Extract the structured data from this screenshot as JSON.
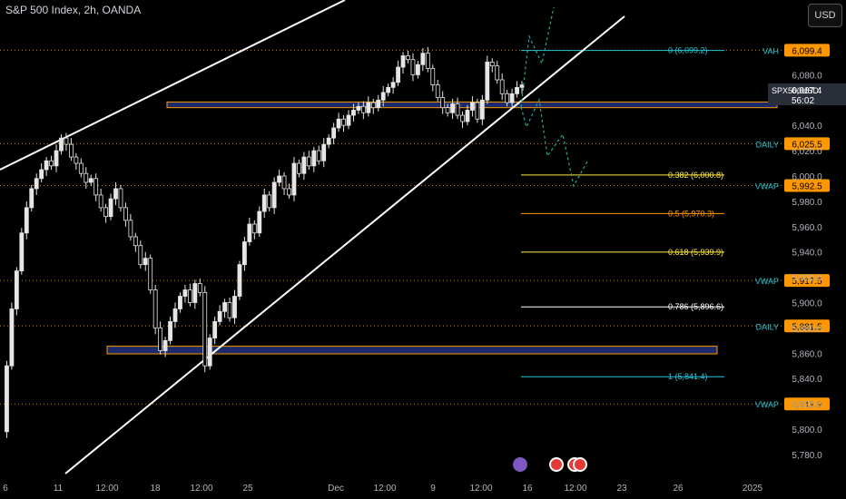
{
  "header": {
    "title": "S&P 500 Index, 2h, OANDA",
    "currency_button": "USD"
  },
  "price_badge": {
    "symbol": "SPX500USD",
    "price": "6,067.4",
    "countdown": "56:02"
  },
  "colors": {
    "background": "#000000",
    "candle": "#e6e6e6",
    "trendline": "#ffffff",
    "zone_fill": "#1b2a6b",
    "zone_border": "#ff9800",
    "level_line": "#ff9800",
    "fib_0": "#26c6da",
    "fib_0382": "#ffeb3b",
    "fib_05": "#ff9800",
    "fib_0618": "#ffeb3b",
    "fib_0786": "#ffffff",
    "fib_1": "#26c6da",
    "projection": "#26a69a",
    "axis_text": "#b2b5be"
  },
  "chart_data": {
    "type": "candlestick",
    "y_range": [
      5768,
      6118
    ],
    "y_ticks": [
      6080.0,
      6060.0,
      6040.0,
      6020.0,
      6000.0,
      5980.0,
      5960.0,
      5940.0,
      5920.0,
      5900.0,
      5880.0,
      5860.0,
      5840.0,
      5820.0,
      5800.0,
      5780.0
    ],
    "x_ticks": [
      "6",
      "11",
      "12:00",
      "18",
      "12:00",
      "25",
      "Dec",
      "12:00",
      "9",
      "12:00",
      "16",
      "12:00",
      "23",
      "26",
      "2025"
    ],
    "levels": [
      {
        "label": "VAH",
        "value": "6,099.4",
        "price": 6099.4
      },
      {
        "label": "DAILY",
        "value": "6,025.5",
        "price": 6025.5
      },
      {
        "label": "VWAP",
        "value": "5,992.5",
        "price": 5992.5
      },
      {
        "label": "VWAP",
        "value": "5,917.5",
        "price": 5917.5
      },
      {
        "label": "DAILY",
        "value": "5,881.5",
        "price": 5881.5
      },
      {
        "label": "VWAP",
        "value": "5,819.9",
        "price": 5819.9
      }
    ],
    "fibonacci": [
      {
        "label": "0 (6,099.2)",
        "price": 6099.2,
        "ckey": "fib_0"
      },
      {
        "label": "0.382 (6,000.8)",
        "price": 6000.8,
        "ckey": "fib_0382"
      },
      {
        "label": "0.5 (5,970.3)",
        "price": 5970.3,
        "ckey": "fib_05"
      },
      {
        "label": "0.618 (5,939.9)",
        "price": 5939.9,
        "ckey": "fib_0618"
      },
      {
        "label": "0.786 (5,896.6)",
        "price": 5896.6,
        "ckey": "fib_0786"
      },
      {
        "label": "1 (5,841.4)",
        "price": 5841.4,
        "ckey": "fib_1"
      }
    ],
    "zones": [
      {
        "name": "upper-zone",
        "high": 6058.5,
        "low": 6054.0
      },
      {
        "name": "lower-zone",
        "high": 5865.5,
        "low": 5859.5
      }
    ],
    "price_path": [
      5798,
      5850,
      5895,
      5925,
      5955,
      5975,
      5990,
      5998,
      6005,
      6012,
      6008,
      6020,
      6030,
      6025,
      6015,
      6010,
      6002,
      5995,
      5998,
      5985,
      5975,
      5968,
      5982,
      5990,
      5975,
      5965,
      5952,
      5945,
      5930,
      5935,
      5910,
      5880,
      5862,
      5870,
      5885,
      5895,
      5905,
      5910,
      5900,
      5915,
      5908,
      5850,
      5872,
      5885,
      5893,
      5900,
      5888,
      5905,
      5930,
      5948,
      5962,
      5955,
      5972,
      5985,
      5975,
      5995,
      6000,
      5990,
      5985,
      6010,
      6002,
      6015,
      6008,
      6020,
      6012,
      6025,
      6030,
      6038,
      6045,
      6040,
      6048,
      6052,
      6055,
      6050,
      6058,
      6054,
      6060,
      6066,
      6070,
      6074,
      6086,
      6095,
      6092,
      6080,
      6088,
      6097,
      6085,
      6072,
      6062,
      6054,
      6050,
      6057,
      6048,
      6043,
      6052,
      6058,
      6045,
      6060,
      6090,
      6087,
      6076,
      6065,
      6058,
      6065,
      6070,
      6072
    ],
    "projection": [
      [
        5.5,
        6085
      ],
      [
        6.2,
        6100
      ],
      [
        5.7,
        6054
      ],
      [
        6.8,
        6030
      ],
      [
        7.8,
        6020
      ]
    ]
  }
}
